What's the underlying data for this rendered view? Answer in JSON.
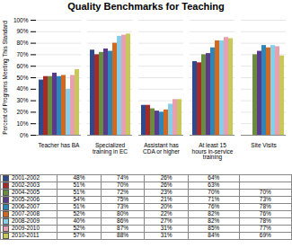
{
  "chart_data": {
    "type": "bar",
    "title": "Quality Benchmarks for Teaching",
    "ylabel": "Percent of Programs Meeting This Standard",
    "categories": [
      "Teacher has BA",
      "Specialized\ntraining in EC",
      "Assistant has\nCDA or higher",
      "At least 15\nhours in-service\ntraining",
      "Site Visits"
    ],
    "series": [
      {
        "name": "2001-2002",
        "color": "#2E4A8C",
        "values": [
          48,
          74,
          26,
          64,
          null
        ],
        "value_labels": [
          "48%",
          "74%",
          "26%",
          "64%",
          null
        ]
      },
      {
        "name": "2002-2003",
        "color": "#A52A2A",
        "values": [
          51,
          70,
          26,
          63,
          null
        ],
        "value_labels": [
          "51%",
          "70%",
          "26%",
          "63%",
          null
        ]
      },
      {
        "name": "2004-2005",
        "color": "#6B8C3E",
        "values": [
          51,
          72,
          23,
          70,
          70
        ],
        "value_labels": [
          "51%",
          "72%",
          "23%",
          "70%",
          "70%"
        ]
      },
      {
        "name": "2005-2006",
        "color": "#5B3A8C",
        "values": [
          54,
          75,
          21,
          71,
          73
        ],
        "value_labels": [
          "54%",
          "75%",
          "21%",
          "71%",
          "73%"
        ]
      },
      {
        "name": "2006-2007",
        "color": "#2E86B8",
        "values": [
          51,
          73,
          20,
          76,
          78
        ],
        "value_labels": [
          "51%",
          "73%",
          "20%",
          "76%",
          "78%"
        ]
      },
      {
        "name": "2007-2008",
        "color": "#D2691E",
        "values": [
          52,
          80,
          22,
          82,
          76
        ],
        "value_labels": [
          "52%",
          "80%",
          "22%",
          "82%",
          "76%"
        ]
      },
      {
        "name": "2008-2009",
        "color": "#87CEEB",
        "values": [
          40,
          86,
          27,
          82,
          78
        ],
        "value_labels": [
          "40%",
          "86%",
          "27%",
          "82%",
          "78%"
        ]
      },
      {
        "name": "2009-2010",
        "color": "#E8A0B0",
        "values": [
          52,
          87,
          31,
          85,
          77
        ],
        "value_labels": [
          "52%",
          "87%",
          "31%",
          "85%",
          "77%"
        ]
      },
      {
        "name": "2010-2011",
        "color": "#C8C85A",
        "values": [
          57,
          88,
          31,
          84,
          69
        ],
        "value_labels": [
          "57%",
          "88%",
          "31%",
          "84%",
          "69%"
        ]
      }
    ],
    "ylim": [
      0,
      100
    ],
    "yticks": [
      {
        "value": 0,
        "label": "0%"
      },
      {
        "value": 10,
        "label": "10%"
      },
      {
        "value": 20,
        "label": "20%"
      },
      {
        "value": 30,
        "label": "30%"
      },
      {
        "value": 40,
        "label": "40%"
      },
      {
        "value": 50,
        "label": "50%"
      },
      {
        "value": 60,
        "label": "60%"
      },
      {
        "value": 70,
        "label": "70%"
      },
      {
        "value": 80,
        "label": "80%"
      },
      {
        "value": 90,
        "label": "90%"
      },
      {
        "value": 100,
        "label": "100%"
      }
    ],
    "grid": true,
    "legend": "bottom"
  }
}
